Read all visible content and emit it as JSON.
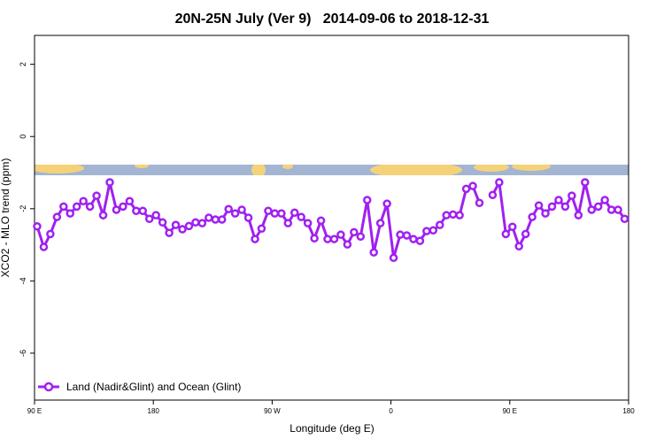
{
  "chart_data": {
    "type": "line",
    "title": "20N-25N July (Ver 9)   2014-09-06 to 2018-12-31",
    "x_label": "Longitude (deg E)",
    "y_label": "XCO2 - MLO trend (ppm)",
    "xlim": [
      90,
      540
    ],
    "xticks": [
      {
        "value": 90,
        "label": "90 E"
      },
      180,
      {
        "value": 270,
        "label": "90 W"
      },
      {
        "value": 360,
        "label": "0"
      },
      {
        "value": 450,
        "label": "90 E"
      },
      {
        "value": 540,
        "label": "180"
      }
    ],
    "ylim": [
      -7.3,
      2.8
    ],
    "yticks": [
      2,
      0,
      -2,
      -4,
      -6
    ],
    "legend": "bottom-left",
    "x": [
      92,
      97,
      102,
      107,
      112,
      117,
      122,
      127,
      132,
      137,
      142,
      147,
      152,
      157,
      162,
      167,
      172,
      177,
      182,
      187,
      192,
      197,
      202,
      207,
      212,
      217,
      222,
      227,
      232,
      237,
      242,
      247,
      252,
      257,
      262,
      267,
      272,
      277,
      282,
      287,
      292,
      297,
      302,
      307,
      312,
      317,
      322,
      327,
      332,
      337,
      342,
      347,
      352,
      357,
      362,
      367,
      372,
      377,
      382,
      387,
      392,
      397,
      402,
      407,
      412,
      417,
      422,
      427,
      432,
      437,
      442,
      447,
      452,
      457,
      462,
      467,
      472,
      477,
      482,
      487,
      492,
      497,
      502,
      507,
      512,
      517,
      522,
      527,
      532,
      537
    ],
    "series": [
      {
        "name": "Land (Nadir&Glint) and Ocean (Glint)",
        "color": "#a020f0",
        "values": [
          -2.49,
          -3.06,
          -2.7,
          -2.23,
          -1.94,
          -2.13,
          -1.94,
          -1.79,
          -1.94,
          -1.64,
          -2.18,
          -1.27,
          -2.03,
          -1.94,
          -1.79,
          -2.06,
          -2.06,
          -2.28,
          -2.18,
          -2.38,
          -2.67,
          -2.45,
          -2.57,
          -2.48,
          -2.38,
          -2.4,
          -2.25,
          -2.3,
          -2.3,
          -2.01,
          -2.13,
          -2.03,
          -2.25,
          -2.84,
          -2.55,
          -2.06,
          -2.13,
          -2.13,
          -2.4,
          -2.11,
          -2.23,
          -2.4,
          -2.82,
          -2.33,
          -2.84,
          -2.84,
          -2.72,
          -2.99,
          -2.65,
          -2.77,
          -1.76,
          -3.21,
          -2.4,
          -1.86,
          -3.36,
          -2.72,
          -2.74,
          -2.84,
          -2.89,
          -2.62,
          -2.6,
          -2.45,
          -2.18,
          -2.16,
          -2.18,
          -1.45,
          -1.37,
          -1.84,
          null,
          -1.62,
          -1.27,
          -2.7,
          -2.5,
          -3.04,
          -2.7,
          -2.23,
          -1.91,
          -2.13,
          -1.94,
          -1.76,
          -1.94,
          -1.64,
          -2.18,
          -1.27,
          -2.03,
          -1.94,
          -1.76,
          -2.03,
          -2.03,
          -2.28
        ]
      }
    ]
  }
}
